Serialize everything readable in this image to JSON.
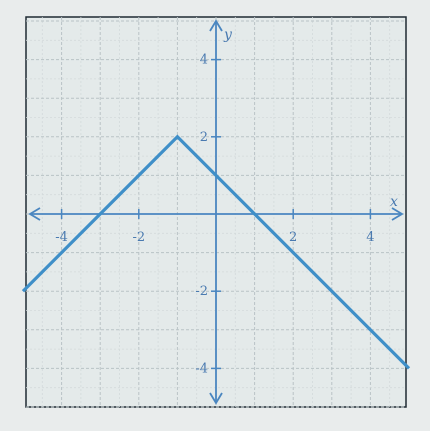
{
  "chart_data": {
    "type": "line",
    "xlabel": "x",
    "ylabel": "y",
    "xlim": [
      -5,
      5
    ],
    "ylim": [
      -5,
      5
    ],
    "x_ticks": [
      {
        "value": -4,
        "label": "-4"
      },
      {
        "value": -2,
        "label": "-2"
      },
      {
        "value": 2,
        "label": "2"
      },
      {
        "value": 4,
        "label": "4"
      }
    ],
    "y_ticks": [
      {
        "value": 4,
        "label": "4"
      },
      {
        "value": 2,
        "label": "2"
      },
      {
        "value": -2,
        "label": "-2"
      },
      {
        "value": -4,
        "label": "-4"
      }
    ],
    "grid": true,
    "grid_step": 0.5,
    "series": [
      {
        "x": [
          -5,
          -1,
          5
        ],
        "y": [
          -2,
          2,
          -4
        ],
        "color": "#3f8fc8"
      }
    ]
  }
}
